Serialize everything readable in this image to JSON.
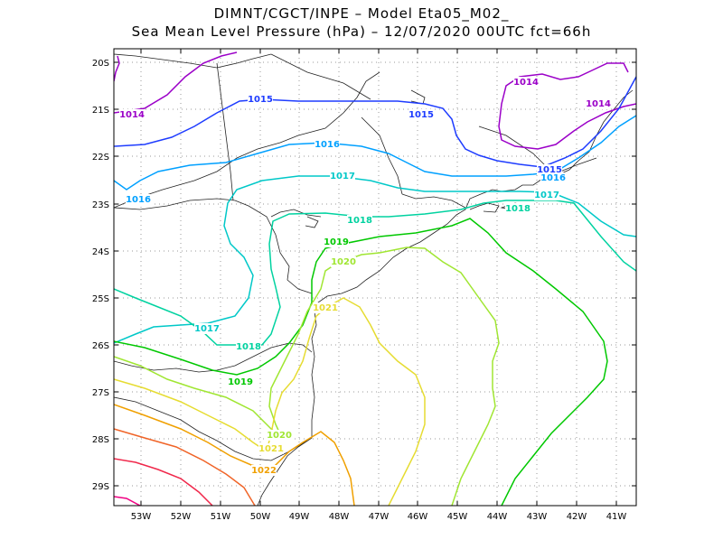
{
  "title_line1": "DIMNT/CGCT/INPE –   Model Eta05_M02_",
  "title_line2": "Sea Mean Level Pressure (hPa) – 12/07/2020 00UTC fct=66h",
  "lat_ticks": [
    "20S",
    "21S",
    "22S",
    "23S",
    "24S",
    "25S",
    "26S",
    "27S",
    "28S",
    "29S"
  ],
  "lon_ticks": [
    "53W",
    "52W",
    "51W",
    "50W",
    "49W",
    "48W",
    "47W",
    "46W",
    "45W",
    "44W",
    "43W",
    "42W",
    "41W"
  ],
  "contour_labels": [
    {
      "id": "lab-1014-w",
      "text": "1014",
      "color": "#9b00c8"
    },
    {
      "id": "lab-1014-ne1",
      "text": "1014",
      "color": "#9b00c8"
    },
    {
      "id": "lab-1014-ne2",
      "text": "1014",
      "color": "#9b00c8"
    },
    {
      "id": "lab-1015-n",
      "text": "1015",
      "color": "#1e3cff"
    },
    {
      "id": "lab-1015-c",
      "text": "1015",
      "color": "#1e3cff"
    },
    {
      "id": "lab-1015-e",
      "text": "1015",
      "color": "#1e3cff"
    },
    {
      "id": "lab-1016-c",
      "text": "1016",
      "color": "#00a0ff"
    },
    {
      "id": "lab-1016-w",
      "text": "1016",
      "color": "#00a0ff"
    },
    {
      "id": "lab-1016-e",
      "text": "1016",
      "color": "#00a0ff"
    },
    {
      "id": "lab-1017-n",
      "text": "1017",
      "color": "#00c8c8"
    },
    {
      "id": "lab-1017-e",
      "text": "1017",
      "color": "#00c8c8"
    },
    {
      "id": "lab-1017-s",
      "text": "1017",
      "color": "#00c8c8"
    },
    {
      "id": "lab-1018-c",
      "text": "1018",
      "color": "#00d2a0"
    },
    {
      "id": "lab-1018-e",
      "text": "1018",
      "color": "#00d2a0"
    },
    {
      "id": "lab-1018-s",
      "text": "1018",
      "color": "#00d2a0"
    },
    {
      "id": "lab-1019-n",
      "text": "1019",
      "color": "#00c800"
    },
    {
      "id": "lab-1019-s",
      "text": "1019",
      "color": "#00c800"
    },
    {
      "id": "lab-1020-n",
      "text": "1020",
      "color": "#a0e632"
    },
    {
      "id": "lab-1020-s",
      "text": "1020",
      "color": "#a0e632"
    },
    {
      "id": "lab-1021-n",
      "text": "1021",
      "color": "#e6dc32"
    },
    {
      "id": "lab-1021-s",
      "text": "1021",
      "color": "#e6dc32"
    },
    {
      "id": "lab-1022-s",
      "text": "1022",
      "color": "#f0a000"
    }
  ],
  "isobar_colors": {
    "1014": "#9b00c8",
    "1015": "#1e3cff",
    "1016": "#00a0ff",
    "1017": "#00c8c8",
    "1018": "#00d2a0",
    "1019": "#00c800",
    "1020": "#a0e632",
    "1021": "#e6dc32",
    "1022": "#f0a000",
    "1023": "#f06428",
    "1024": "#f0284b",
    "1025": "#f00082"
  }
}
